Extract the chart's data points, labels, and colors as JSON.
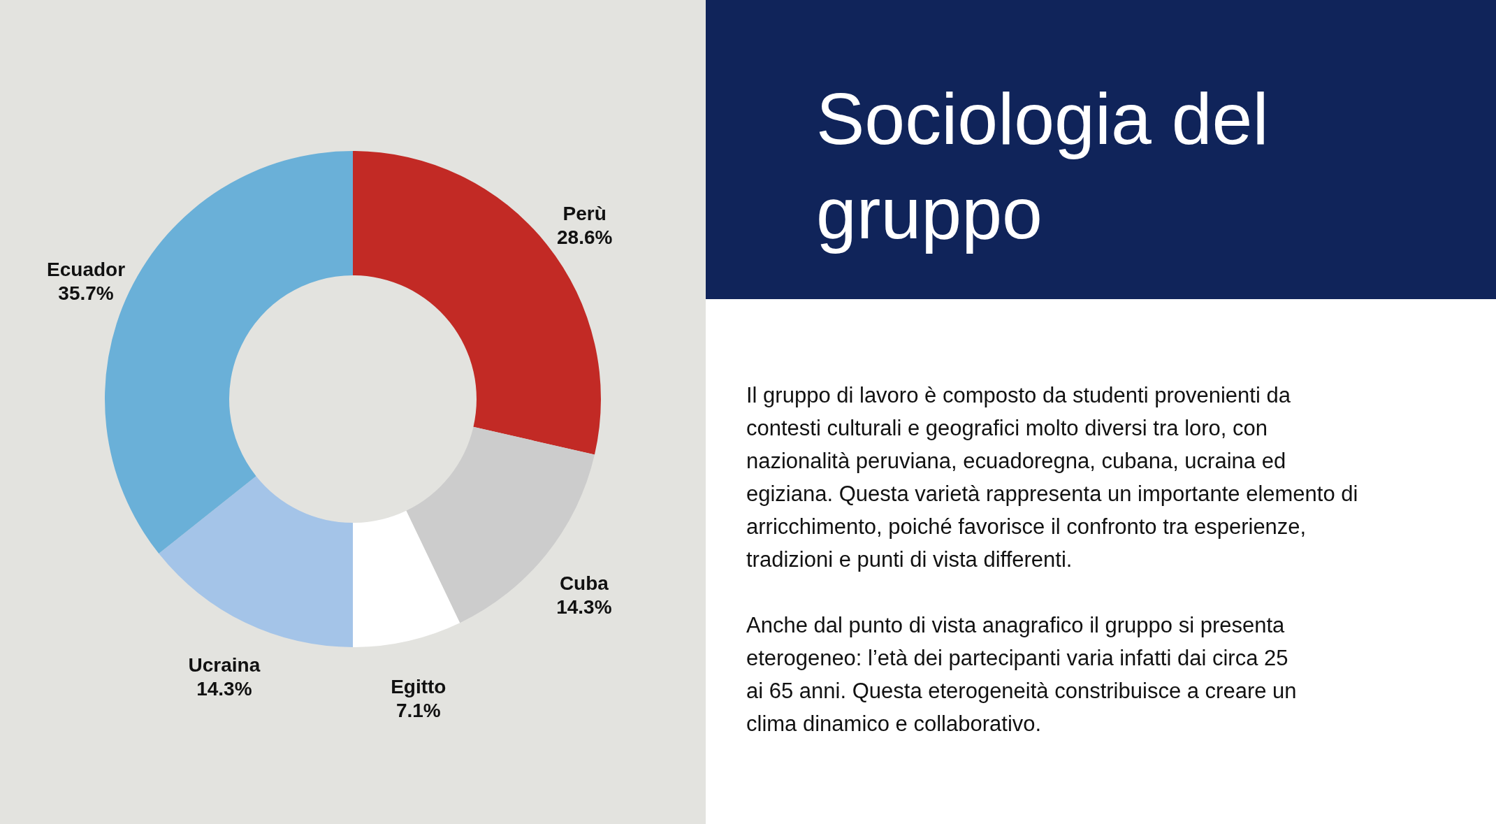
{
  "chart_data": {
    "type": "donut",
    "title": "Sociologia del gruppo",
    "categories": [
      "Perù",
      "Cuba",
      "Egitto",
      "Ucraina",
      "Ecuador"
    ],
    "values": [
      28.6,
      14.3,
      7.1,
      14.3,
      35.7
    ],
    "value_labels": [
      "28.6%",
      "14.3%",
      "7.1%",
      "14.3%",
      "35.7%"
    ],
    "colors": [
      "#c22a25",
      "#cccccc",
      "#ffffff",
      "#a4c4e8",
      "#6ab0d8"
    ],
    "annotations": [
      "Il gruppo di lavoro è composto da studenti provenienti da contesti culturali e geografici molto diversi tra loro, con nazionalità peruviana, ecuadoregna, cubana, ucraina ed egiziana. Questa varietà rappresenta un importante elemento di arricchimento, poiché favorisce il confronto tra esperienze, tradizioni e punti di vista differenti.",
      "Anche dal punto di vista anagrafico il gruppo si presenta eterogeneo: l’età dei partecipanti varia infatti dai circa 25 ai 65 anni. Questa eterogeneità constribuisce a creare un clima dinamico e collaborativo."
    ]
  }
}
